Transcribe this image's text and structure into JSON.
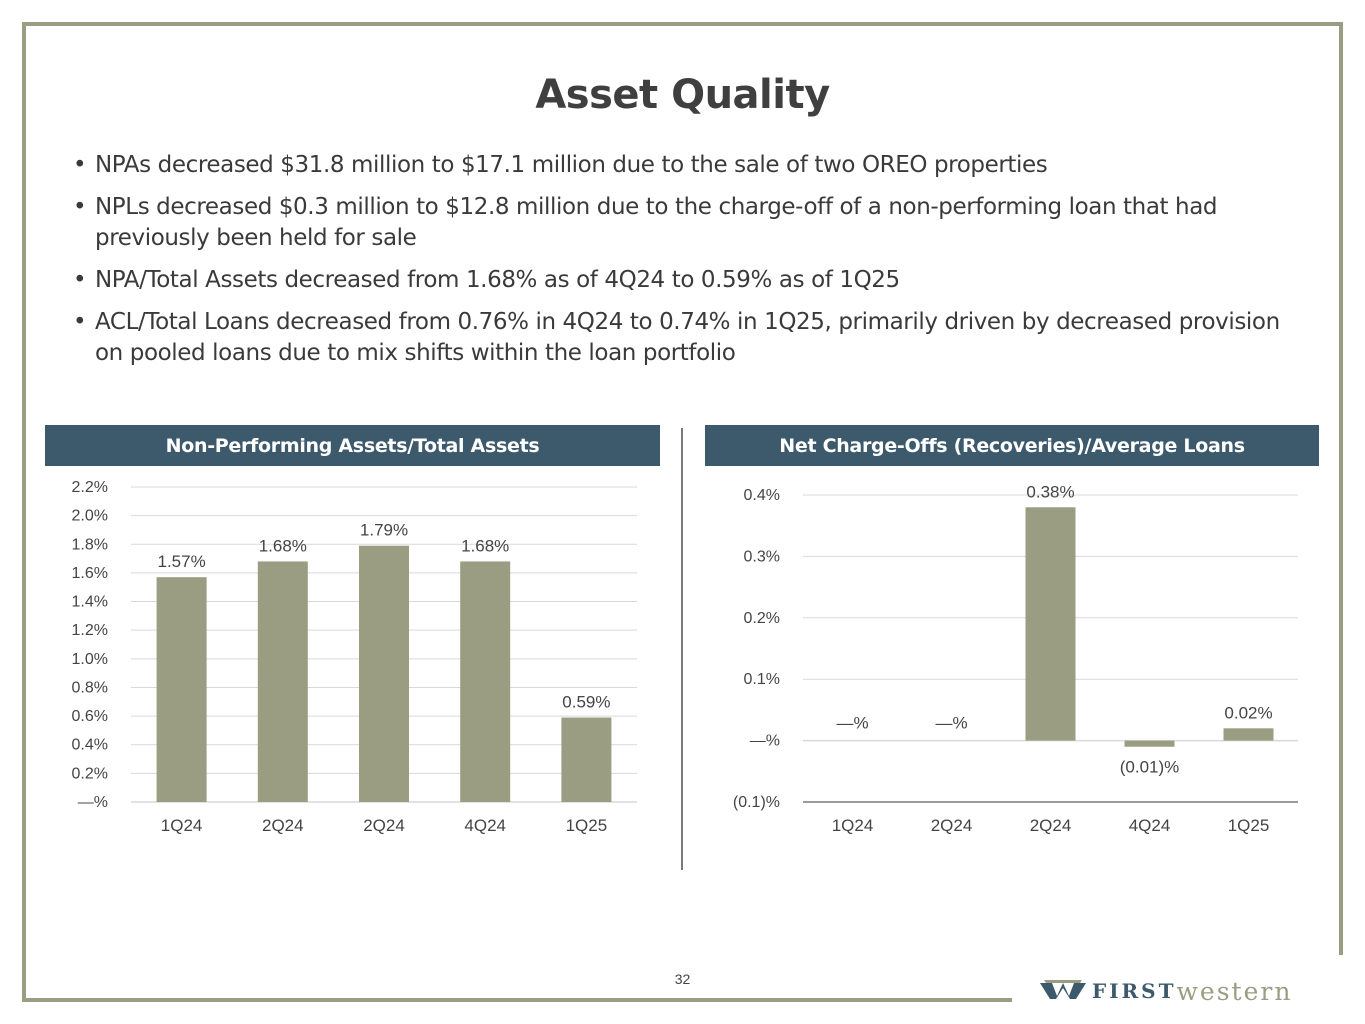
{
  "title": "Asset Quality",
  "bullets": [
    "NPAs decreased $31.8 million to $17.1 million due to the sale of two OREO properties",
    "NPLs decreased $0.3 million to $12.8 million due to the charge-off of a non-performing loan that had previously been held for sale",
    "NPA/Total Assets decreased from 1.68% as of 4Q24 to 0.59% as of 1Q25",
    "ACL/Total Loans decreased from 0.76% in 4Q24 to 0.74% in 1Q25, primarily driven by decreased provision on pooled loans due to mix shifts within the loan portfolio"
  ],
  "bullet_symbol": "•",
  "colors": {
    "bar": "#9a9d82",
    "header": "#3d5a6c",
    "frame": "#9a9d82"
  },
  "chart_data": [
    {
      "type": "bar",
      "title": "Non-Performing Assets/Total Assets",
      "categories": [
        "1Q24",
        "2Q24",
        "2Q24",
        "4Q24",
        "1Q25"
      ],
      "values": [
        1.57,
        1.68,
        1.79,
        1.68,
        0.59
      ],
      "data_labels": [
        "1.57%",
        "1.68%",
        "1.79%",
        "1.68%",
        "0.59%"
      ],
      "yticks": [
        0,
        0.2,
        0.4,
        0.6,
        0.8,
        1.0,
        1.2,
        1.4,
        1.6,
        1.8,
        2.0,
        2.2
      ],
      "ytick_labels": [
        "—%",
        "0.2%",
        "0.4%",
        "0.6%",
        "0.8%",
        "1.0%",
        "1.2%",
        "1.4%",
        "1.6%",
        "1.8%",
        "2.0%",
        "2.2%"
      ],
      "ylim": [
        0,
        2.2
      ],
      "grid": true,
      "xlabel": "",
      "ylabel": ""
    },
    {
      "type": "bar",
      "title": "Net Charge-Offs (Recoveries)/Average Loans",
      "categories": [
        "1Q24",
        "2Q24",
        "2Q24",
        "4Q24",
        "1Q25"
      ],
      "values": [
        0,
        0,
        0.38,
        -0.01,
        0.02
      ],
      "data_labels": [
        "—%",
        "—%",
        "0.38%",
        "(0.01)%",
        "0.02%"
      ],
      "yticks": [
        -0.1,
        0,
        0.1,
        0.2,
        0.3,
        0.4
      ],
      "ytick_labels": [
        "(0.1)%",
        "—%",
        "0.1%",
        "0.2%",
        "0.3%",
        "0.4%"
      ],
      "ylim": [
        -0.1,
        0.4
      ],
      "grid": true,
      "xlabel": "",
      "ylabel": ""
    }
  ],
  "page_number": "32",
  "logo": {
    "first": "FIRST",
    "western": "western"
  }
}
